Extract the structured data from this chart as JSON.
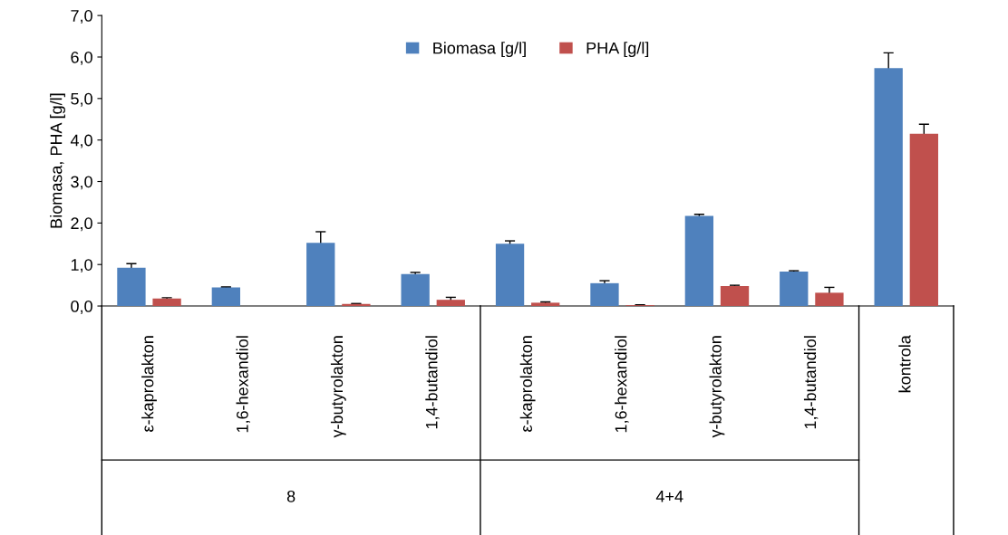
{
  "chart_data": {
    "type": "bar",
    "ylabel": "Biomasa, PHA [g/l]",
    "categories": [
      "ε-kaprolakton",
      "1,6-hexandiol",
      "γ-butyrolakton",
      "1,4-butandiol",
      "ε-kaprolakton",
      "1,6-hexandiol",
      "γ-butyrolakton",
      "1,4-butandiol",
      "kontrola"
    ],
    "series": [
      {
        "name": "Biomasa [g/l]",
        "color": "#4f81bd",
        "values": [
          0.92,
          0.45,
          1.52,
          0.77,
          1.5,
          0.55,
          2.17,
          0.83,
          5.73
        ],
        "errors": [
          0.1,
          0.01,
          0.27,
          0.04,
          0.07,
          0.06,
          0.04,
          0.02,
          0.37
        ]
      },
      {
        "name": "PHA [g/l]",
        "color": "#c0504d",
        "values": [
          0.18,
          null,
          0.05,
          0.15,
          0.08,
          0.02,
          0.48,
          0.32,
          4.15
        ],
        "errors": [
          0.02,
          null,
          0.01,
          0.06,
          0.02,
          0.01,
          0.02,
          0.13,
          0.23
        ]
      }
    ],
    "ylim": [
      0,
      7
    ],
    "yticks": [
      {
        "value": 0,
        "label": "0,0"
      },
      {
        "value": 1,
        "label": "1,0"
      },
      {
        "value": 2,
        "label": "2,0"
      },
      {
        "value": 3,
        "label": "3,0"
      },
      {
        "value": 4,
        "label": "4,0"
      },
      {
        "value": 5,
        "label": "5,0"
      },
      {
        "value": 6,
        "label": "6,0"
      },
      {
        "value": 7,
        "label": "7,0"
      }
    ],
    "annotations": [
      "8",
      "4+4"
    ],
    "legend": "top",
    "grid": false
  }
}
